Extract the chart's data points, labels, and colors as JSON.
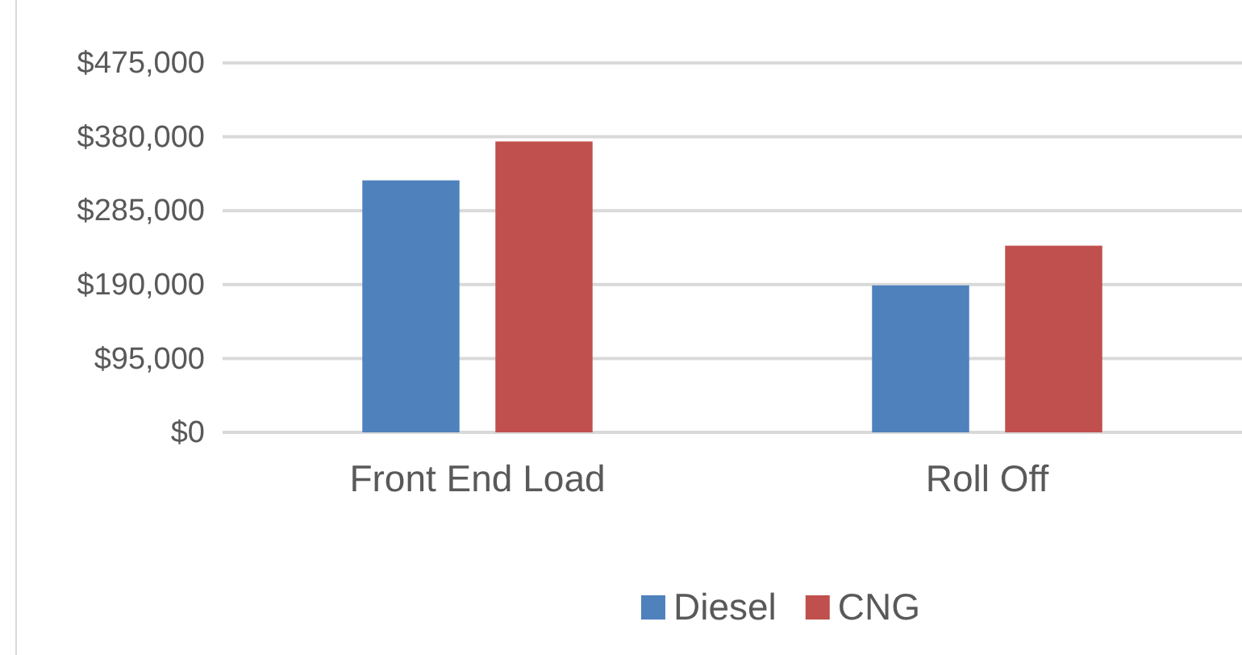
{
  "chart_data": {
    "type": "bar",
    "categories": [
      "Front End Load",
      "Roll Off"
    ],
    "series": [
      {
        "name": "Diesel",
        "color": "#4f81bd",
        "values": [
          324000,
          189000
        ]
      },
      {
        "name": "CNG",
        "color": "#c0504d",
        "values": [
          374000,
          240000
        ]
      }
    ],
    "ylim": [
      0,
      475000
    ],
    "yticks": [
      {
        "value": 0,
        "label": "$0"
      },
      {
        "value": 95000,
        "label": "$95,000"
      },
      {
        "value": 190000,
        "label": "$190,000"
      },
      {
        "value": 285000,
        "label": "$285,000"
      },
      {
        "value": 380000,
        "label": "$380,000"
      },
      {
        "value": 475000,
        "label": "$475,000"
      }
    ],
    "grid": "y",
    "legend": "bottom"
  }
}
